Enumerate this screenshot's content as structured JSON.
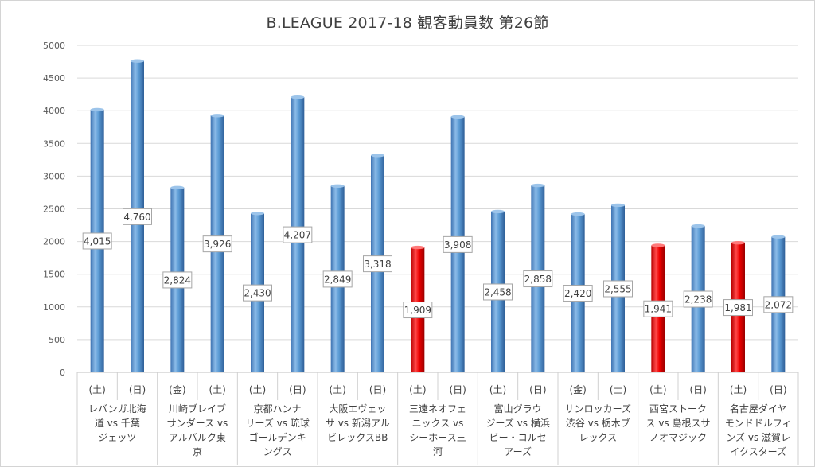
{
  "chart_data": {
    "type": "bar",
    "title": "B.LEAGUE 2017-18 観客動員数 第26節",
    "ylim": [
      0,
      5000
    ],
    "yticks": [
      0,
      500,
      1000,
      1500,
      2000,
      2500,
      3000,
      3500,
      4000,
      4500,
      5000
    ],
    "grid": true,
    "colors": {
      "default": "#5b9bd5",
      "highlight": "#ff0000"
    },
    "groups": [
      {
        "label_lines": [
          "レバンガ北海",
          "道 vs 千葉",
          "ジェッツ"
        ]
      },
      {
        "label_lines": [
          "川崎ブレイブ",
          "サンダース vs",
          "アルバルク東",
          "京"
        ]
      },
      {
        "label_lines": [
          "京都ハンナ",
          "リーズ vs 琉球",
          "ゴールデンキ",
          "ングス"
        ]
      },
      {
        "label_lines": [
          "大阪エヴェッ",
          "サ vs 新潟アル",
          "ビレックスBB"
        ]
      },
      {
        "label_lines": [
          "三遠ネオフェ",
          "ニックス vs",
          "シーホース三",
          "河"
        ]
      },
      {
        "label_lines": [
          "富山グラウ",
          "ジーズ vs 横浜",
          "ビー・コルセ",
          "アーズ"
        ]
      },
      {
        "label_lines": [
          "サンロッカーズ",
          "渋谷 vs 栃木ブ",
          "レックス"
        ]
      },
      {
        "label_lines": [
          "西宮ストーク",
          "ス vs 島根スサ",
          "ノオマジック"
        ]
      },
      {
        "label_lines": [
          "名古屋ダイヤ",
          "モンドドルフィ",
          "ンズ vs 滋賀レ",
          "イクスターズ"
        ]
      }
    ],
    "categories": [
      "(土)",
      "(日)",
      "(金)",
      "(土)",
      "(土)",
      "(日)",
      "(土)",
      "(日)",
      "(土)",
      "(日)",
      "(土)",
      "(日)",
      "(金)",
      "(土)",
      "(土)",
      "(日)",
      "(土)",
      "(日)"
    ],
    "values": [
      4015,
      4760,
      2824,
      3926,
      2430,
      4207,
      2849,
      3318,
      1909,
      3908,
      2458,
      2858,
      2420,
      2555,
      1941,
      2238,
      1981,
      2072
    ],
    "data_labels": [
      "4,015",
      "4,760",
      "2,824",
      "3,926",
      "2,430",
      "4,207",
      "2,849",
      "3,318",
      "1,909",
      "3,908",
      "2,458",
      "2,858",
      "2,420",
      "2,555",
      "1,941",
      "2,238",
      "1,981",
      "2,072"
    ],
    "highlighted": [
      false,
      false,
      false,
      false,
      false,
      false,
      false,
      false,
      true,
      false,
      false,
      false,
      false,
      false,
      true,
      false,
      true,
      false
    ]
  }
}
